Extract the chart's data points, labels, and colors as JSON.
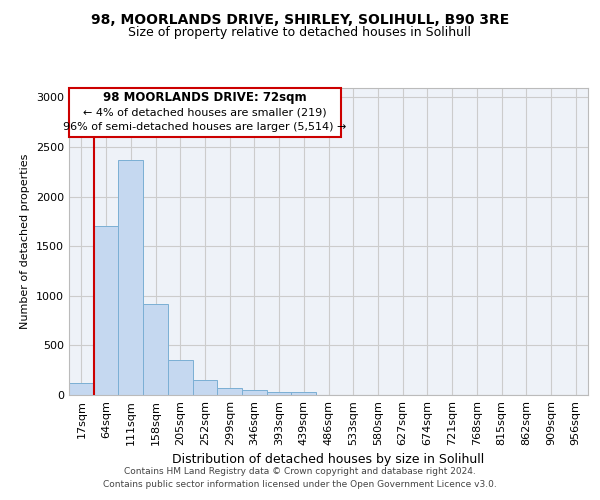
{
  "title1": "98, MOORLANDS DRIVE, SHIRLEY, SOLIHULL, B90 3RE",
  "title2": "Size of property relative to detached houses in Solihull",
  "xlabel": "Distribution of detached houses by size in Solihull",
  "ylabel": "Number of detached properties",
  "footer1": "Contains HM Land Registry data © Crown copyright and database right 2024.",
  "footer2": "Contains public sector information licensed under the Open Government Licence v3.0.",
  "annotation_title": "98 MOORLANDS DRIVE: 72sqm",
  "annotation_line2": "← 4% of detached houses are smaller (219)",
  "annotation_line3": "96% of semi-detached houses are larger (5,514) →",
  "bar_values": [
    120,
    1700,
    2370,
    920,
    350,
    150,
    75,
    50,
    30,
    30,
    0,
    0,
    0,
    0,
    0,
    0,
    0,
    0,
    0,
    0,
    0
  ],
  "bar_labels": [
    "17sqm",
    "64sqm",
    "111sqm",
    "158sqm",
    "205sqm",
    "252sqm",
    "299sqm",
    "346sqm",
    "393sqm",
    "439sqm",
    "486sqm",
    "533sqm",
    "580sqm",
    "627sqm",
    "674sqm",
    "721sqm",
    "768sqm",
    "815sqm",
    "862sqm",
    "909sqm",
    "956sqm"
  ],
  "bar_color": "#c5d8f0",
  "bar_edge_color": "#7bafd4",
  "vline_x": 1,
  "vline_color": "#cc0000",
  "ylim": [
    0,
    3100
  ],
  "yticks": [
    0,
    500,
    1000,
    1500,
    2000,
    2500,
    3000
  ],
  "grid_color": "#cccccc",
  "bg_color": "#eef2f8",
  "annotation_box_color": "#ffffff",
  "annotation_box_edge": "#cc0000",
  "fig_bg": "#ffffff"
}
